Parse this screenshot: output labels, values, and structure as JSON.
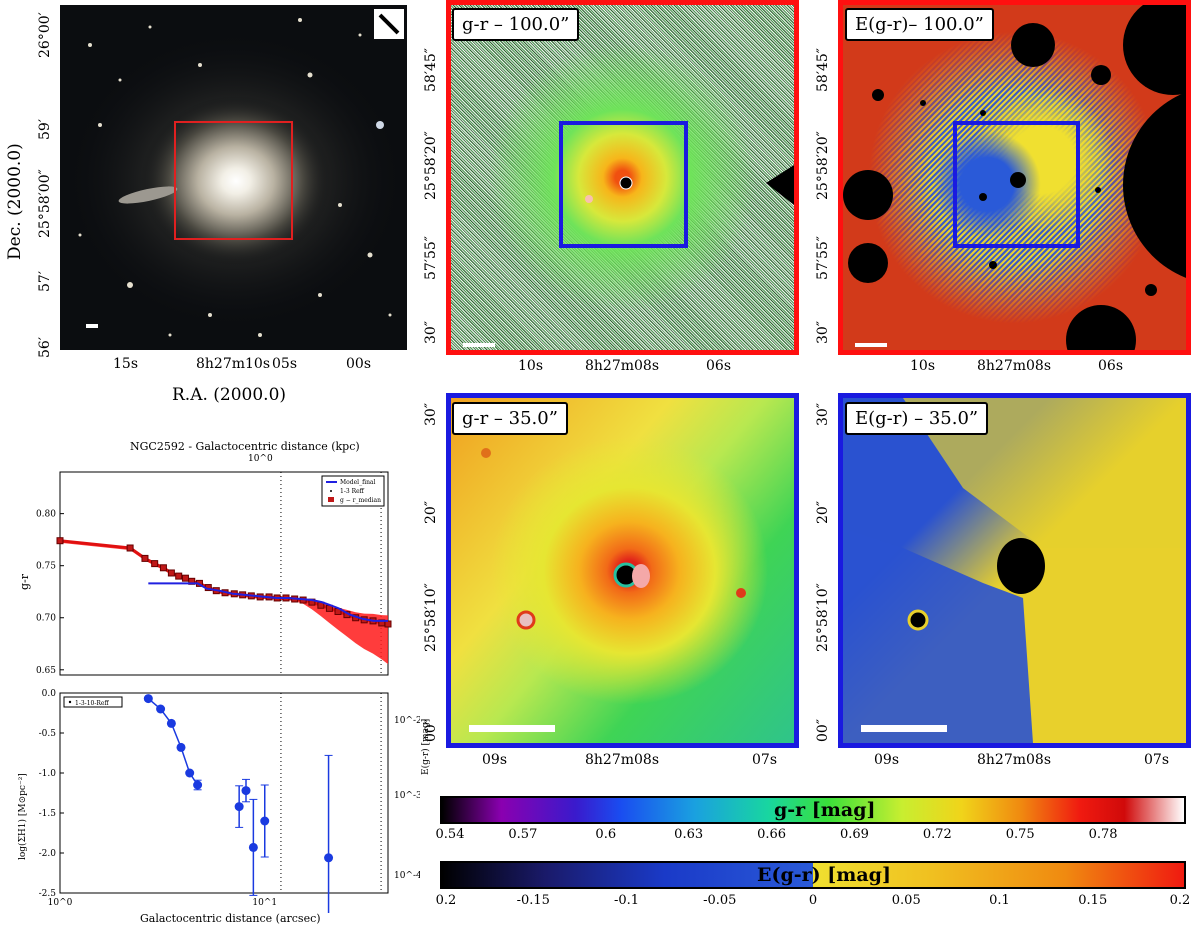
{
  "panel_a": {
    "y_label": "Dec. (2000.0)",
    "x_label": "R.A. (2000.0)",
    "y_ticks": [
      "26°00′",
      "59′",
      "25°58′00″",
      "57′",
      "56′"
    ],
    "x_ticks": [
      "15s",
      "8h27m10s",
      "05s",
      "00s"
    ]
  },
  "panel_b": {
    "title": "g-r – 100.0”",
    "y_ticks": [
      "58′45″",
      "25°58′20″",
      "57′55″",
      "30″"
    ],
    "x_ticks": [
      "10s",
      "8h27m08s",
      "06s"
    ]
  },
  "panel_c": {
    "title": "E(g-r)– 100.0”",
    "y_ticks": [
      "58′45″",
      "25°58′20″",
      "57′55″",
      "30″"
    ],
    "x_ticks": [
      "10s",
      "8h27m08s",
      "06s"
    ]
  },
  "panel_d": {
    "title": "g-r – 35.0”",
    "y_ticks": [
      "30″",
      "20″",
      "25°58′10″",
      "00″"
    ],
    "x_ticks": [
      "09s",
      "8h27m08s",
      "07s"
    ]
  },
  "panel_e": {
    "title": "E(g-r) – 35.0”",
    "y_ticks": [
      "30″",
      "20″",
      "25°58′10″",
      "00″"
    ],
    "x_ticks": [
      "09s",
      "8h27m08s",
      "07s"
    ]
  },
  "colorbar_gr": {
    "label": "g-r [mag]",
    "ticks": [
      "0.54",
      "0.57",
      "0.6",
      "0.63",
      "0.66",
      "0.69",
      "0.72",
      "0.75",
      "0.78"
    ]
  },
  "colorbar_egr": {
    "label": "E(g-r) [mag]",
    "ticks": [
      "0.2",
      "-0.15",
      "-0.1",
      "-0.05",
      "0",
      "0.05",
      "0.1",
      "0.15",
      "0.2"
    ]
  },
  "chart_data": [
    {
      "type": "line",
      "title": "NGC2592 - Galactocentric distance (kpc)",
      "top_axis_tick": "10^0",
      "ylabel": "g-r",
      "xscale": "log",
      "xlim": [
        1,
        40
      ],
      "ylim": [
        0.645,
        0.84
      ],
      "y_ticks": [
        "0.80",
        "0.75",
        "0.70",
        "0.65"
      ],
      "legend": [
        "Model_final",
        "1-3 Reff",
        "g − r_median"
      ],
      "series": [
        {
          "name": "g − r_median",
          "x": [
            1.0,
            2.2,
            2.6,
            2.9,
            3.2,
            3.5,
            3.8,
            4.1,
            4.4,
            4.8,
            5.3,
            5.8,
            6.4,
            7.1,
            7.8,
            8.6,
            9.5,
            10.5,
            11.5,
            12.7,
            14.0,
            15.4,
            17.0,
            18.8,
            20.7,
            22.8,
            25.2,
            27.8,
            30.6,
            33.8,
            37.3,
            40.0
          ],
          "y": [
            0.774,
            0.767,
            0.757,
            0.752,
            0.748,
            0.743,
            0.74,
            0.738,
            0.735,
            0.733,
            0.729,
            0.726,
            0.724,
            0.723,
            0.722,
            0.721,
            0.72,
            0.72,
            0.719,
            0.719,
            0.718,
            0.717,
            0.715,
            0.712,
            0.709,
            0.706,
            0.703,
            0.7,
            0.698,
            0.697,
            0.695,
            0.694
          ]
        },
        {
          "name": "Model_final",
          "x": [
            2.7,
            4.7,
            5.2,
            6.0,
            7.0,
            8.0,
            9.0,
            10.0,
            11.5,
            13.0,
            15.0,
            17.0,
            19.0,
            21.0,
            23.0,
            26.0,
            30.0,
            34.0,
            40.0
          ],
          "y": [
            0.733,
            0.733,
            0.728,
            0.726,
            0.723,
            0.722,
            0.721,
            0.72,
            0.719,
            0.719,
            0.718,
            0.717,
            0.715,
            0.712,
            0.709,
            0.703,
            0.699,
            0.697,
            0.697
          ]
        }
      ],
      "vlines_x": [
        12.0,
        37.0
      ]
    },
    {
      "type": "scatter",
      "ylabel": "log(ΣH1) [M⊙pc⁻²]",
      "ylabel_right": "E(g-r) [mag]",
      "xlabel": "Galactocentric distance (arcsec)",
      "xscale": "log",
      "xlim": [
        1,
        40
      ],
      "ylim": [
        -2.5,
        0.0
      ],
      "x_ticks": [
        "10^0",
        "10^1"
      ],
      "y_ticks": [
        "0.0",
        "-0.5",
        "-1.0",
        "-1.5",
        "-2.0",
        "-2.5"
      ],
      "y_right_ticks": [
        "10^-2",
        "10^-3",
        "10^-4"
      ],
      "legend": [
        "1-3-10-Reff"
      ],
      "series": [
        {
          "name": "connected",
          "x": [
            2.7,
            3.1,
            3.5,
            3.9,
            4.3,
            4.7
          ],
          "y": [
            -0.07,
            -0.2,
            -0.38,
            -0.68,
            -1.0,
            -1.15
          ],
          "err": [
            0,
            0,
            0,
            0,
            0,
            0.06
          ]
        },
        {
          "name": "outer",
          "x": [
            7.5,
            8.1,
            8.8,
            10.0,
            20.5
          ],
          "y": [
            -1.42,
            -1.22,
            -1.93,
            -1.6,
            -2.06
          ],
          "err": [
            0.26,
            0.14,
            0.6,
            0.45,
            1.28
          ]
        }
      ],
      "vlines_x": [
        12.0,
        37.0
      ]
    }
  ]
}
